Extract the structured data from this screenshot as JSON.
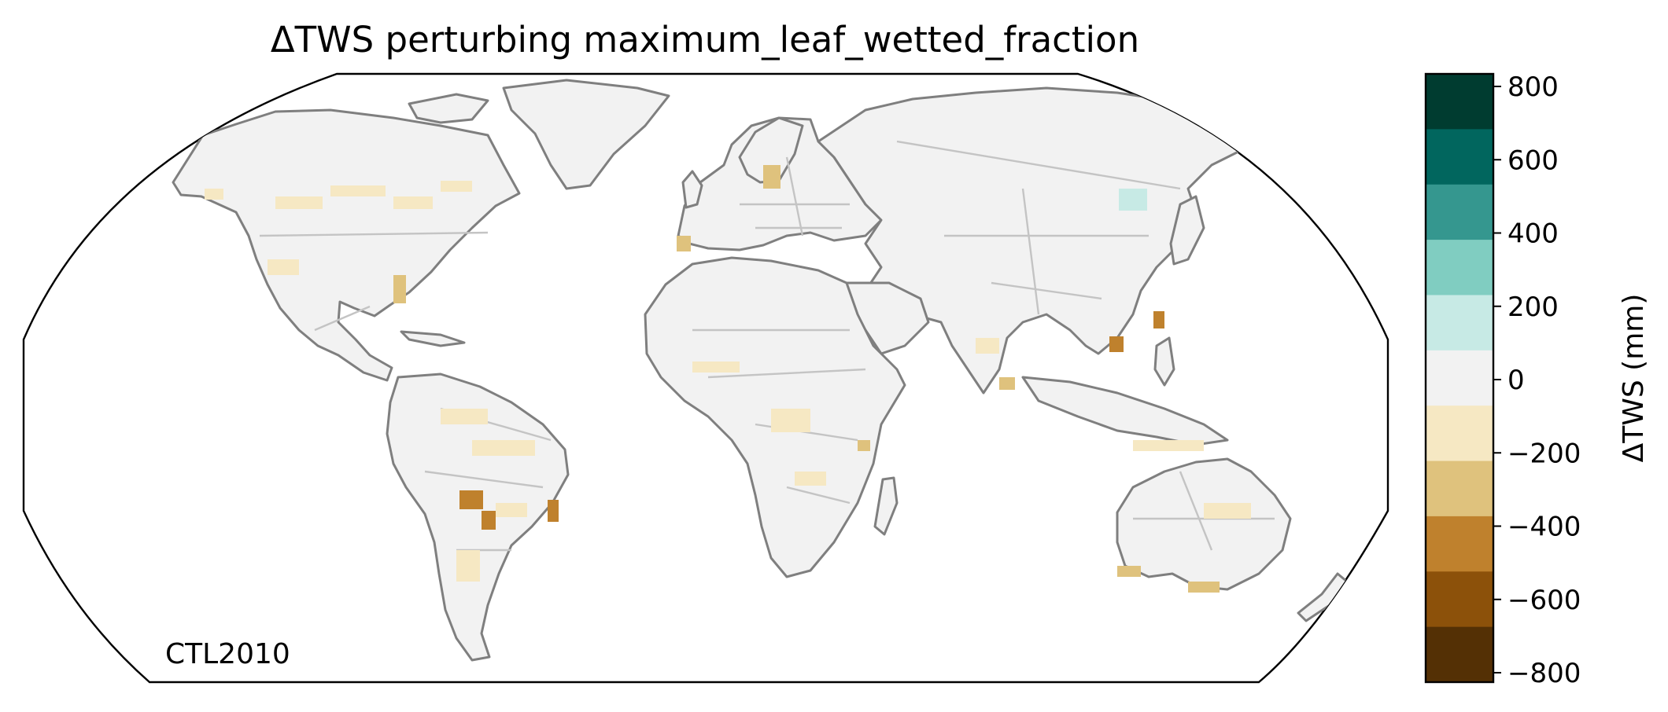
{
  "title": "ΔTWS perturbing maximum_leaf_wetted_fraction",
  "corner_label": "CTL2010",
  "colorbar": {
    "label": "ΔTWS (mm)",
    "ticks": [
      "800",
      "600",
      "400",
      "200",
      "0",
      "−200",
      "−400",
      "−600",
      "−800"
    ],
    "bins": [
      {
        "range": "600 to 800",
        "color": "#003c30"
      },
      {
        "range": "400 to 600",
        "color": "#01665e"
      },
      {
        "range": "200 to 400",
        "color": "#35978f"
      },
      {
        "range": "100 to 200",
        "color": "#80cdc1"
      },
      {
        "range": "50 to 100",
        "color": "#c7eae5"
      },
      {
        "range": "-50 to 50",
        "color": "#f2f2f2"
      },
      {
        "range": "-100 to -50",
        "color": "#f6e8c3"
      },
      {
        "range": "-200 to -100",
        "color": "#dfc27d"
      },
      {
        "range": "-400 to -200",
        "color": "#bf812d"
      },
      {
        "range": "-600 to -400",
        "color": "#8c510a"
      },
      {
        "range": "-800 to -600",
        "color": "#543005"
      }
    ]
  },
  "map": {
    "projection": "Robinson",
    "land_color": "#f2f2f2",
    "coastline_color": "#7f7f7f",
    "border_color": "#c4c4c4"
  }
}
